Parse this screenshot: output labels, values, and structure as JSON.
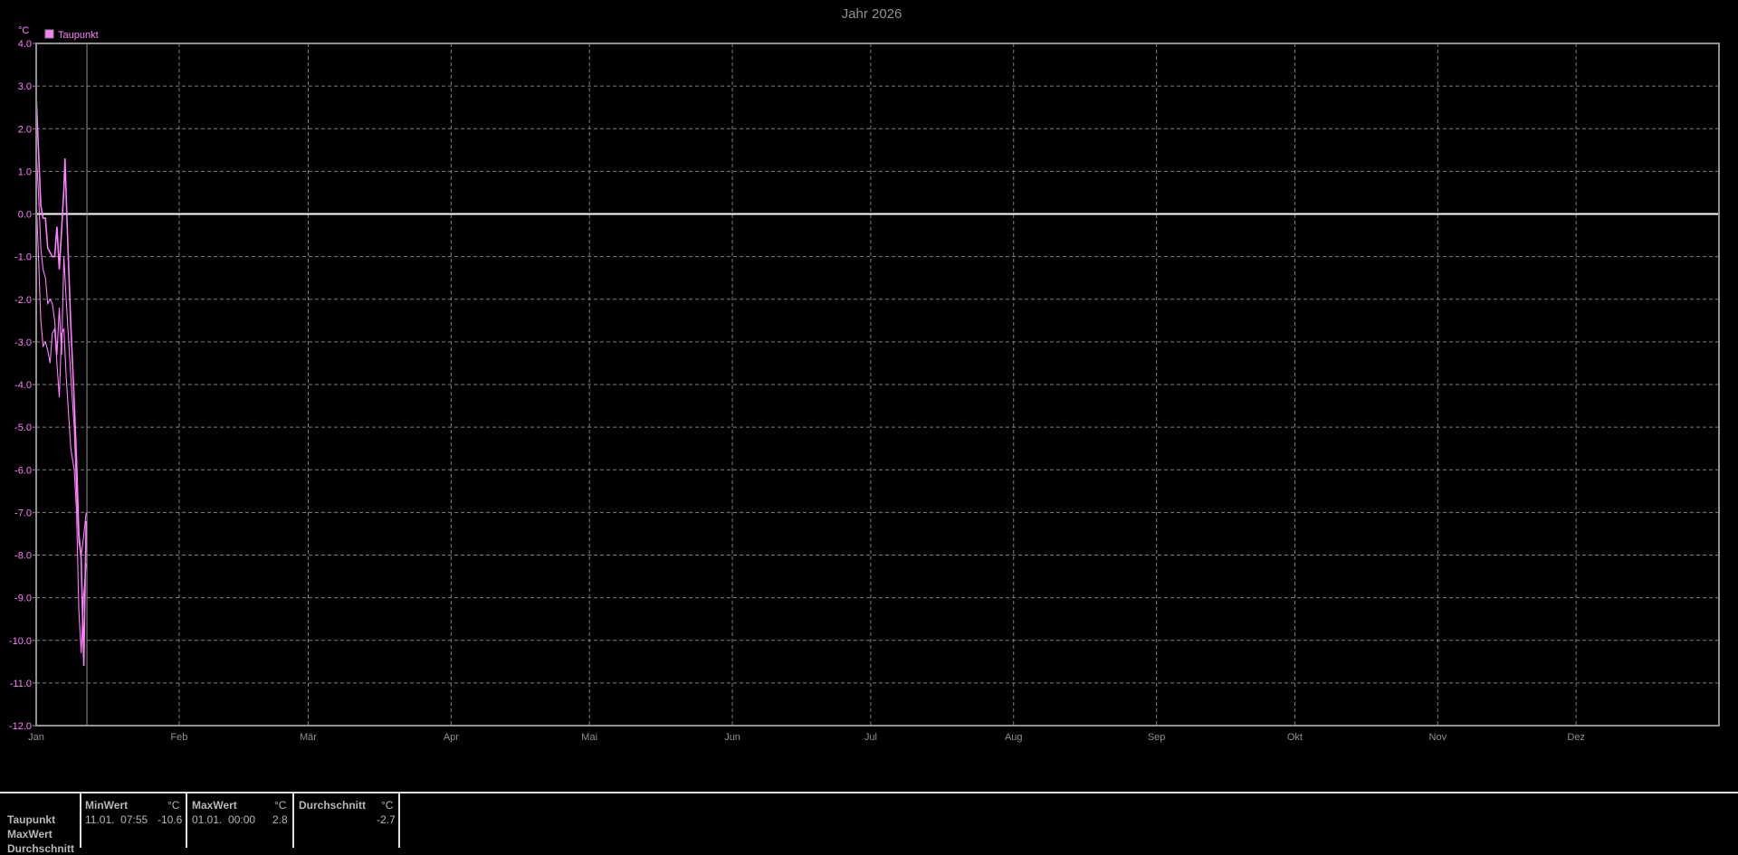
{
  "chart_data": {
    "type": "line",
    "title": "Jahr 2026",
    "ylabel": "°C",
    "ylim": [
      -12,
      4
    ],
    "yticks": [
      "4.0",
      "3.0",
      "2.0",
      "1.0",
      "0.0",
      "-1.0",
      "-2.0",
      "-3.0",
      "-4.0",
      "-5.0",
      "-6.0",
      "-7.0",
      "-8.0",
      "-9.0",
      "-10.0",
      "-11.0",
      "-12.0"
    ],
    "xlim": [
      "2026-01-01",
      "2027-01-01"
    ],
    "xticks": [
      {
        "label": "Jan",
        "date": "2026-01-01"
      },
      {
        "label": "Feb",
        "date": "2026-02-01"
      },
      {
        "label": "Mär",
        "date": "2026-03-01"
      },
      {
        "label": "Apr",
        "date": "2026-04-01"
      },
      {
        "label": "Mai",
        "date": "2026-05-01"
      },
      {
        "label": "Jun",
        "date": "2026-06-01"
      },
      {
        "label": "Jul",
        "date": "2026-07-01"
      },
      {
        "label": "Aug",
        "date": "2026-08-01"
      },
      {
        "label": "Sep",
        "date": "2026-09-01"
      },
      {
        "label": "Okt",
        "date": "2026-10-01"
      },
      {
        "label": "Nov",
        "date": "2026-11-01"
      },
      {
        "label": "Dez",
        "date": "2026-12-01"
      }
    ],
    "grid": true,
    "zero_line": true,
    "cursor_date": "2026-01-12",
    "legend": {
      "position": "top-left",
      "entries": [
        {
          "name": "Taupunkt",
          "color": "#ff80ff"
        }
      ]
    },
    "series": [
      {
        "name": "Taupunkt",
        "color": "#ff80ff",
        "points": [
          [
            "2026-01-01T00:00",
            2.8
          ],
          [
            "2026-01-01T12:00",
            1.5
          ],
          [
            "2026-01-02T00:00",
            0.2
          ],
          [
            "2026-01-02T12:00",
            -0.1
          ],
          [
            "2026-01-03T00:00",
            -0.1
          ],
          [
            "2026-01-03T12:00",
            -0.8
          ],
          [
            "2026-01-04T00:00",
            -0.9
          ],
          [
            "2026-01-04T12:00",
            -1.0
          ],
          [
            "2026-01-05T00:00",
            -1.0
          ],
          [
            "2026-01-05T12:00",
            -0.3
          ],
          [
            "2026-01-06T00:00",
            -1.3
          ],
          [
            "2026-01-06T12:00",
            -0.4
          ],
          [
            "2026-01-07T00:00",
            0.6
          ],
          [
            "2026-01-07T06:00",
            1.3
          ],
          [
            "2026-01-07T18:00",
            -0.4
          ],
          [
            "2026-01-08T12:00",
            -2.6
          ],
          [
            "2026-01-09T06:00",
            -4.4
          ],
          [
            "2026-01-09T18:00",
            -5.8
          ],
          [
            "2026-01-10T06:00",
            -7.5
          ],
          [
            "2026-01-10T18:00",
            -8.1
          ],
          [
            "2026-01-11T07:55",
            -10.6
          ],
          [
            "2026-01-11T12:00",
            -9.3
          ],
          [
            "2026-01-11T20:00",
            -7.2
          ]
        ]
      },
      {
        "name": "",
        "color": "#ff80ff",
        "points": [
          [
            "2026-01-01T00:00",
            1.5
          ],
          [
            "2026-01-01T12:00",
            0.5
          ],
          [
            "2026-01-02T00:00",
            -0.8
          ],
          [
            "2026-01-02T12:00",
            -1.3
          ],
          [
            "2026-01-03T00:00",
            -1.5
          ],
          [
            "2026-01-03T12:00",
            -2.1
          ],
          [
            "2026-01-04T00:00",
            -2.0
          ],
          [
            "2026-01-04T12:00",
            -2.1
          ],
          [
            "2026-01-05T00:00",
            -2.5
          ],
          [
            "2026-01-05T12:00",
            -3.3
          ],
          [
            "2026-01-06T00:00",
            -2.2
          ],
          [
            "2026-01-06T12:00",
            -3.3
          ],
          [
            "2026-01-07T00:00",
            -1.0
          ],
          [
            "2026-01-07T12:00",
            -2.0
          ],
          [
            "2026-01-08T12:00",
            -3.8
          ],
          [
            "2026-01-09T06:00",
            -5.0
          ],
          [
            "2026-01-09T18:00",
            -6.5
          ],
          [
            "2026-01-10T06:00",
            -7.7
          ],
          [
            "2026-01-10T18:00",
            -8.0
          ],
          [
            "2026-01-11T06:00",
            -7.6
          ],
          [
            "2026-01-11T20:00",
            -7.0
          ]
        ]
      },
      {
        "name": "",
        "color": "#ff80ff",
        "points": [
          [
            "2026-01-01T00:00",
            0.4
          ],
          [
            "2026-01-01T12:00",
            -1.0
          ],
          [
            "2026-01-02T00:00",
            -2.5
          ],
          [
            "2026-01-02T12:00",
            -3.1
          ],
          [
            "2026-01-03T00:00",
            -3.0
          ],
          [
            "2026-01-03T12:00",
            -3.2
          ],
          [
            "2026-01-04T00:00",
            -3.5
          ],
          [
            "2026-01-04T12:00",
            -2.8
          ],
          [
            "2026-01-05T00:00",
            -2.7
          ],
          [
            "2026-01-05T12:00",
            -3.5
          ],
          [
            "2026-01-06T00:00",
            -4.3
          ],
          [
            "2026-01-06T12:00",
            -2.8
          ],
          [
            "2026-01-07T00:00",
            -2.7
          ],
          [
            "2026-01-07T12:00",
            -3.8
          ],
          [
            "2026-01-08T12:00",
            -5.5
          ],
          [
            "2026-01-09T06:00",
            -6.0
          ],
          [
            "2026-01-09T18:00",
            -7.0
          ],
          [
            "2026-01-10T06:00",
            -9.3
          ],
          [
            "2026-01-10T18:00",
            -10.3
          ],
          [
            "2026-01-11T06:00",
            -9.0
          ],
          [
            "2026-01-11T20:00",
            -8.2
          ]
        ]
      }
    ]
  },
  "table": {
    "row_labels": [
      "Taupunkt",
      "MaxWert",
      "Durchschnitt"
    ],
    "min": {
      "header": "MinWert",
      "unit": "°C",
      "time": "11.01.  07:55",
      "value": "-10.6"
    },
    "max": {
      "header": "MaxWert",
      "unit": "°C",
      "time": "01.01.  00:00",
      "value": "2.8"
    },
    "avg": {
      "header": "Durchschnitt",
      "unit": "°C",
      "value": "-2.7"
    }
  }
}
